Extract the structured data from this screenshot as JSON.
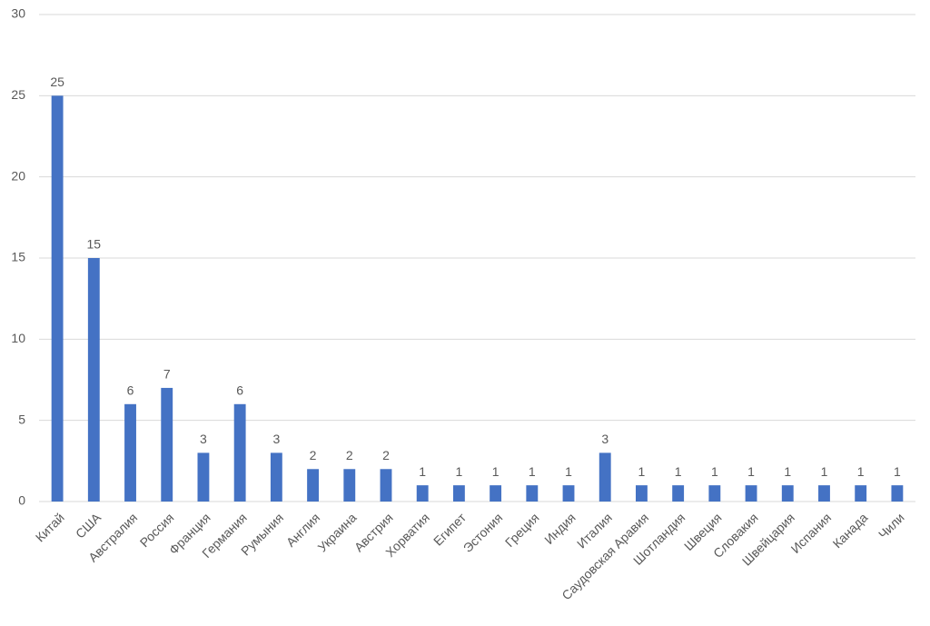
{
  "chart_data": {
    "type": "bar",
    "categories": [
      "Китай",
      "США",
      "Австралия",
      "Россия",
      "Франция",
      "Германия",
      "Румыния",
      "Англия",
      "Украина",
      "Австрия",
      "Хорватия",
      "Египет",
      "Эстония",
      "Греция",
      "Индия",
      "Италия",
      "Саудовская Аравия",
      "Шотландия",
      "Швеция",
      "Словакия",
      "Швейцария",
      "Испания",
      "Канада",
      "Чили"
    ],
    "values": [
      25,
      15,
      6,
      7,
      3,
      6,
      3,
      2,
      2,
      2,
      1,
      1,
      1,
      1,
      1,
      3,
      1,
      1,
      1,
      1,
      1,
      1,
      1,
      1
    ],
    "color": "#4472c4",
    "ylim": [
      0,
      30
    ],
    "yticks": [
      0,
      5,
      10,
      15,
      20,
      25,
      30
    ],
    "grid": true,
    "data_labels": true
  }
}
